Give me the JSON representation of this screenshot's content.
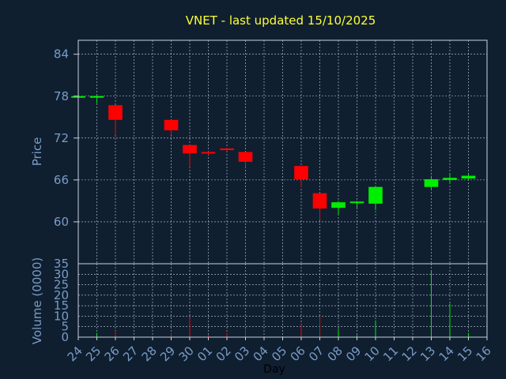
{
  "colors": {
    "background": "#0f1f30",
    "title": "#ffff33",
    "frame": "#c8d0e0",
    "grid": "#c8d0e0",
    "tick_label": "#7a9cc6",
    "axis_label_price": "#7a9cc6",
    "axis_label_day": "#000000",
    "up": "#00ee00",
    "down": "#ff0000",
    "doji": "#00ee00"
  },
  "chart_data": {
    "type": "candlestick",
    "title": "VNET - last updated 15/10/2025",
    "xlabel": "Day",
    "price_panel": {
      "ylabel": "Price",
      "ylim": [
        54,
        86
      ],
      "yticks": [
        60,
        66,
        72,
        78,
        84
      ],
      "grid": true
    },
    "volume_panel": {
      "ylabel": "Volume (0000)",
      "ylim": [
        0,
        35
      ],
      "yticks": [
        0,
        5,
        10,
        15,
        20,
        25,
        30,
        35
      ],
      "grid": true
    },
    "x_ticks": [
      "24",
      "25",
      "26",
      "27",
      "28",
      "29",
      "30",
      "01",
      "02",
      "03",
      "04",
      "05",
      "06",
      "07",
      "08",
      "09",
      "10",
      "11",
      "12",
      "13",
      "14",
      "15",
      "16"
    ],
    "candles": [
      {
        "day": "24",
        "open": 78.0,
        "high": 78.1,
        "low": 77.9,
        "close": 78.0,
        "volume": 0
      },
      {
        "day": "25",
        "open": 78.0,
        "high": 78.1,
        "low": 77.0,
        "close": 78.0,
        "volume": 2
      },
      {
        "day": "26",
        "open": 76.7,
        "high": 76.7,
        "low": 72.4,
        "close": 74.6,
        "volume": 3
      },
      {
        "day": "29",
        "open": 74.6,
        "high": 74.6,
        "low": 72.4,
        "close": 73.1,
        "volume": 2
      },
      {
        "day": "30",
        "open": 71.0,
        "high": 71.0,
        "low": 67.8,
        "close": 69.8,
        "volume": 9
      },
      {
        "day": "01",
        "open": 70.0,
        "high": 70.1,
        "low": 69.6,
        "close": 69.9,
        "volume": 1
      },
      {
        "day": "02",
        "open": 70.5,
        "high": 70.6,
        "low": 70.1,
        "close": 70.4,
        "volume": 2
      },
      {
        "day": "03",
        "open": 70.0,
        "high": 70.0,
        "low": 67.8,
        "close": 68.6,
        "volume": 4
      },
      {
        "day": "06",
        "open": 68.0,
        "high": 68.0,
        "low": 65.0,
        "close": 66.1,
        "volume": 6
      },
      {
        "day": "07",
        "open": 64.1,
        "high": 64.1,
        "low": 60.2,
        "close": 61.9,
        "volume": 10
      },
      {
        "day": "08",
        "open": 62.0,
        "high": 63.0,
        "low": 61.0,
        "close": 62.8,
        "volume": 4
      },
      {
        "day": "09",
        "open": 62.7,
        "high": 63.0,
        "low": 62.0,
        "close": 62.9,
        "volume": 1
      },
      {
        "day": "10",
        "open": 62.6,
        "high": 65.0,
        "low": 61.7,
        "close": 65.0,
        "volume": 8
      },
      {
        "day": "13",
        "open": 65.0,
        "high": 66.6,
        "low": 64.5,
        "close": 66.1,
        "volume": 32
      },
      {
        "day": "14",
        "open": 66.0,
        "high": 66.9,
        "low": 65.6,
        "close": 66.3,
        "volume": 16
      },
      {
        "day": "15",
        "open": 66.2,
        "high": 66.8,
        "low": 66.0,
        "close": 66.6,
        "volume": 2
      }
    ]
  }
}
